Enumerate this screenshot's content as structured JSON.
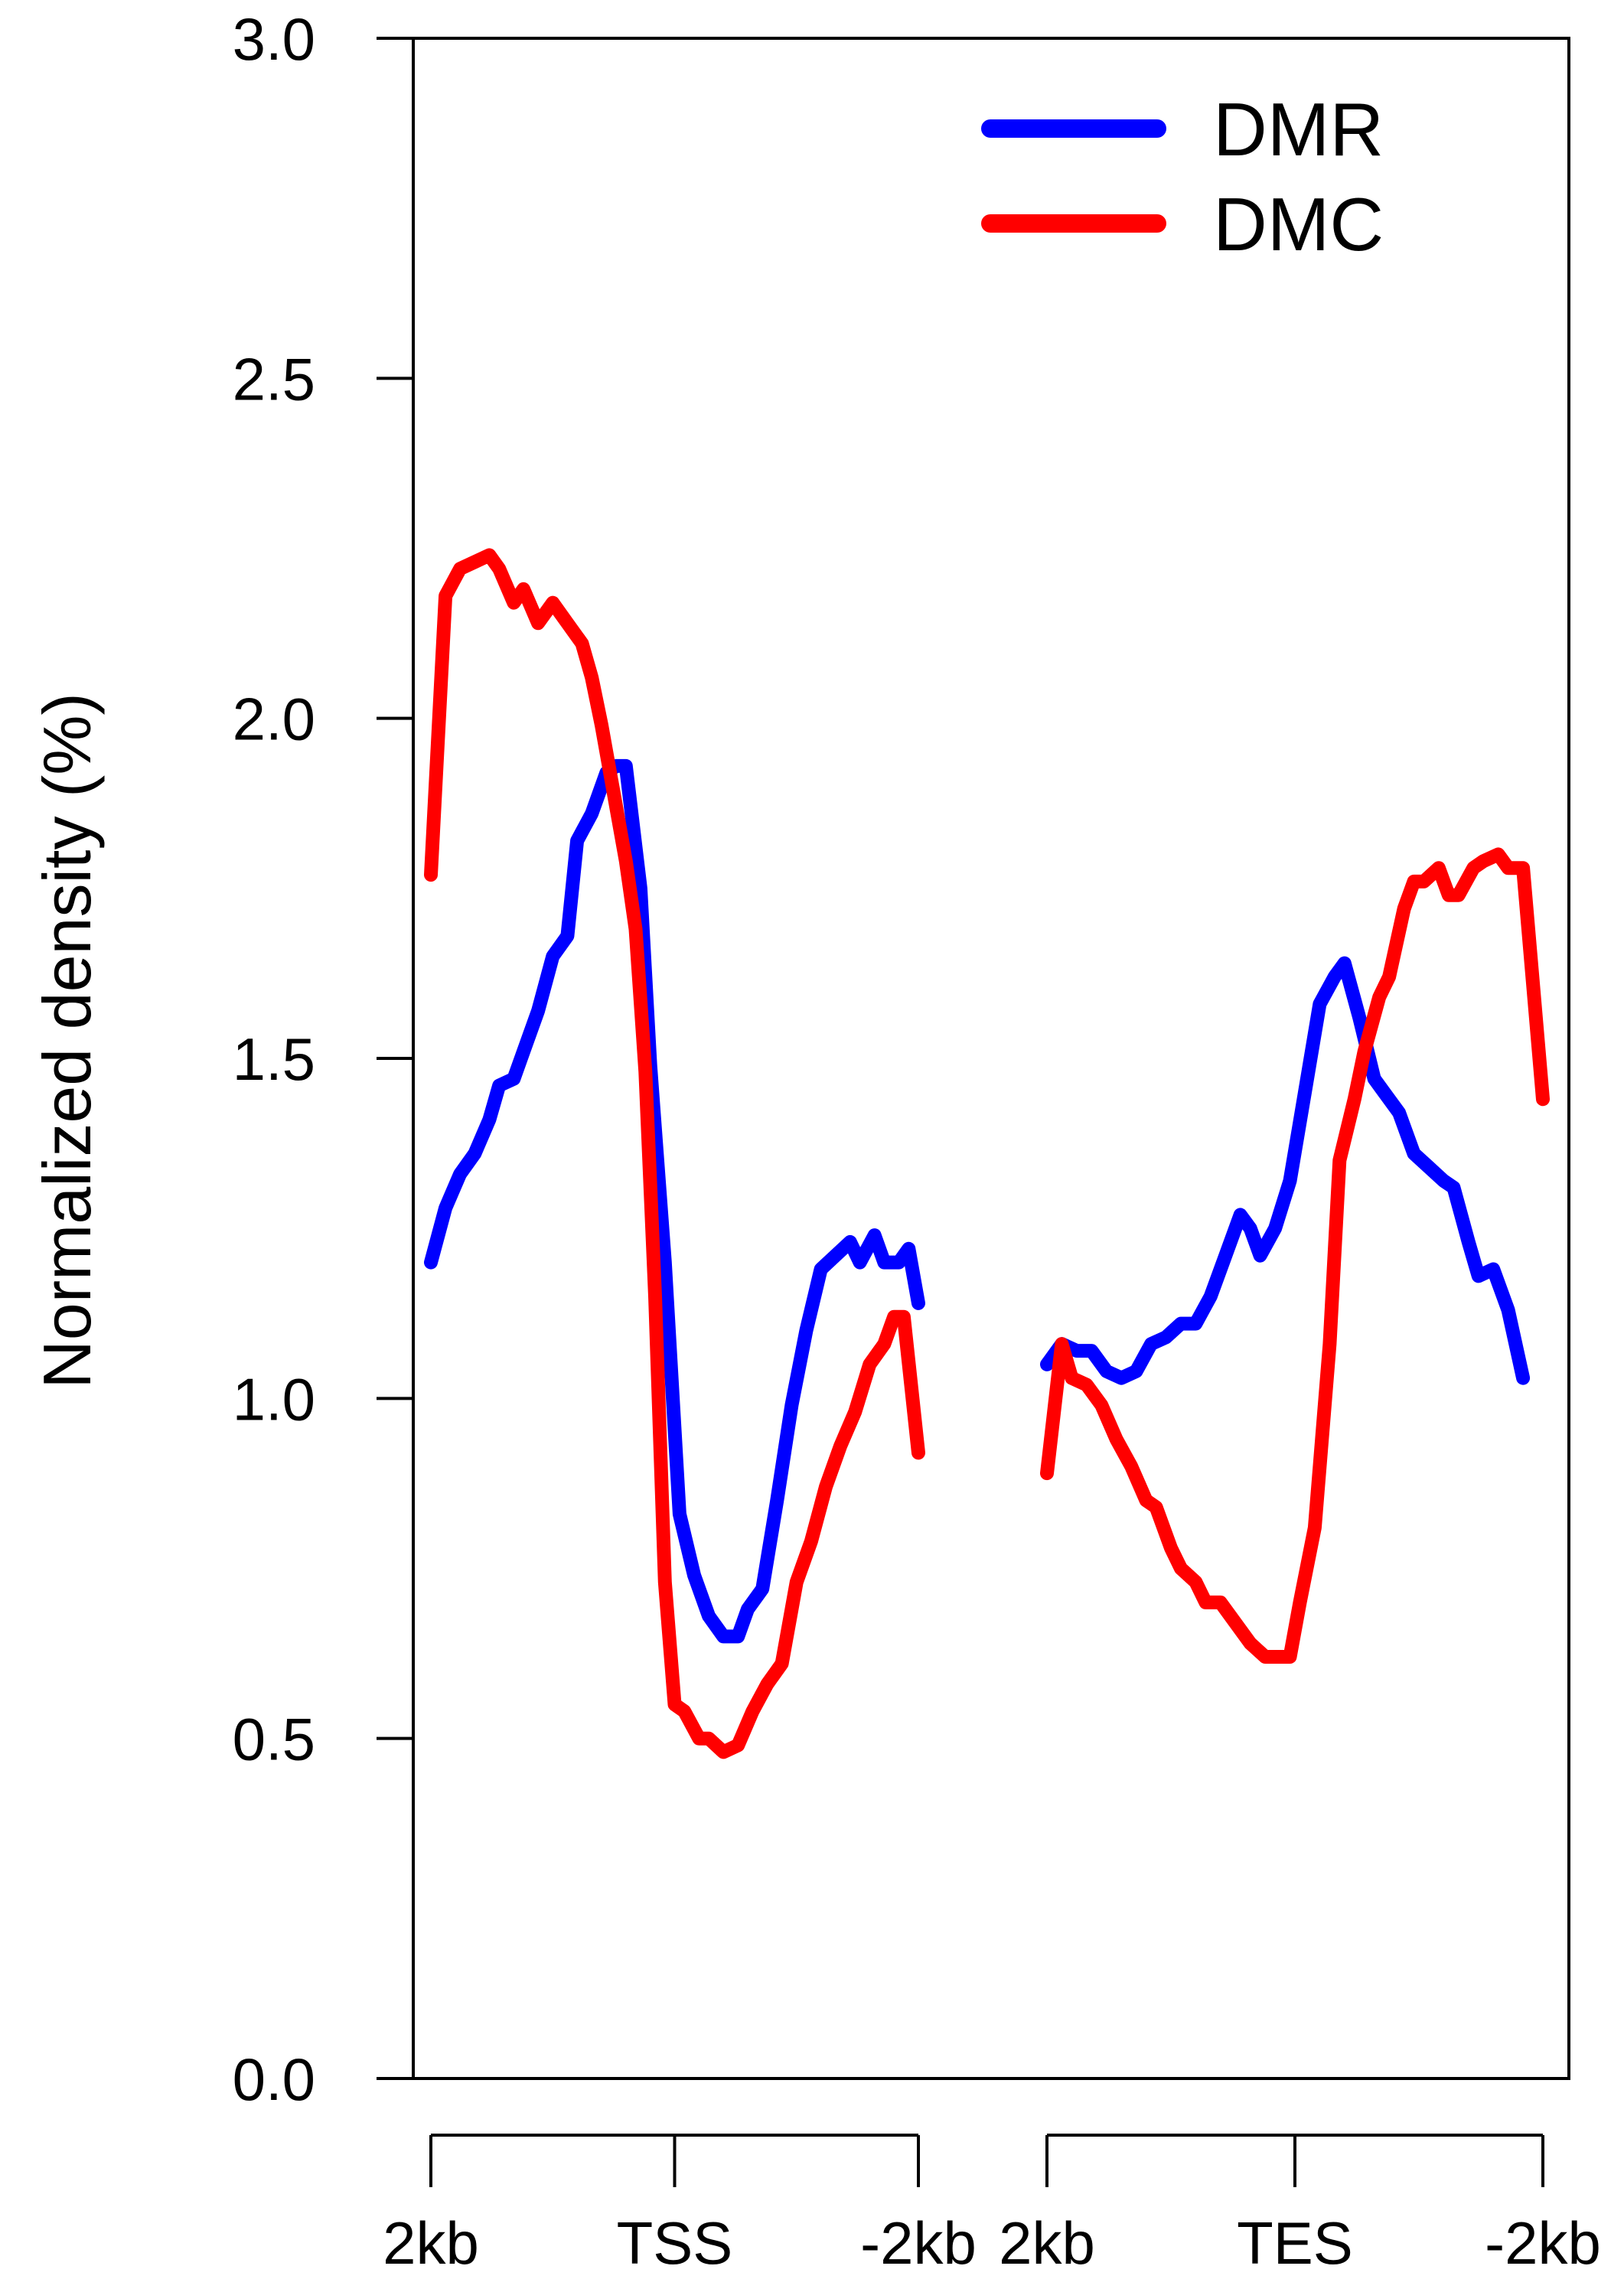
{
  "chart_data": {
    "type": "line",
    "ylabel": "Normalized density (%)",
    "ylim": [
      0,
      3.0
    ],
    "yticks": [
      0.0,
      0.5,
      1.0,
      1.5,
      2.0,
      2.5,
      3.0
    ],
    "ytick_labels": [
      "0.0",
      "0.5",
      "1.0",
      "1.5",
      "2.0",
      "2.5",
      "3.0"
    ],
    "grid": false,
    "legend_position": "top-right",
    "x_segments": [
      {
        "labels": [
          "2kb",
          "TSS",
          "-2kb"
        ]
      },
      {
        "labels": [
          "2kb",
          "TES",
          "-2kb"
        ]
      }
    ],
    "series": [
      {
        "name": "DMR",
        "color": "#0000ff",
        "segments": [
          [
            [
              0.0,
              1.2
            ],
            [
              0.03,
              1.28
            ],
            [
              0.06,
              1.33
            ],
            [
              0.09,
              1.36
            ],
            [
              0.12,
              1.41
            ],
            [
              0.14,
              1.46
            ],
            [
              0.17,
              1.47
            ],
            [
              0.19,
              1.51
            ],
            [
              0.22,
              1.57
            ],
            [
              0.25,
              1.65
            ],
            [
              0.28,
              1.68
            ],
            [
              0.3,
              1.82
            ],
            [
              0.33,
              1.86
            ],
            [
              0.36,
              1.92
            ],
            [
              0.38,
              1.93
            ],
            [
              0.4,
              1.93
            ],
            [
              0.43,
              1.75
            ],
            [
              0.45,
              1.49
            ],
            [
              0.48,
              1.2
            ],
            [
              0.51,
              0.83
            ],
            [
              0.54,
              0.74
            ],
            [
              0.57,
              0.68
            ],
            [
              0.6,
              0.65
            ],
            [
              0.63,
              0.65
            ],
            [
              0.65,
              0.69
            ],
            [
              0.68,
              0.72
            ],
            [
              0.71,
              0.85
            ],
            [
              0.74,
              0.99
            ],
            [
              0.77,
              1.1
            ],
            [
              0.8,
              1.19
            ],
            [
              0.83,
              1.21
            ],
            [
              0.86,
              1.23
            ],
            [
              0.88,
              1.2
            ],
            [
              0.91,
              1.24
            ],
            [
              0.93,
              1.2
            ],
            [
              0.96,
              1.2
            ],
            [
              0.98,
              1.22
            ],
            [
              1.0,
              1.14
            ]
          ],
          [
            [
              0.0,
              1.05
            ],
            [
              0.03,
              1.08
            ],
            [
              0.06,
              1.07
            ],
            [
              0.09,
              1.07
            ],
            [
              0.12,
              1.04
            ],
            [
              0.15,
              1.03
            ],
            [
              0.18,
              1.04
            ],
            [
              0.21,
              1.08
            ],
            [
              0.24,
              1.09
            ],
            [
              0.27,
              1.11
            ],
            [
              0.3,
              1.11
            ],
            [
              0.33,
              1.15
            ],
            [
              0.36,
              1.21
            ],
            [
              0.39,
              1.27
            ],
            [
              0.41,
              1.25
            ],
            [
              0.43,
              1.21
            ],
            [
              0.46,
              1.25
            ],
            [
              0.49,
              1.32
            ],
            [
              0.52,
              1.45
            ],
            [
              0.55,
              1.58
            ],
            [
              0.58,
              1.62
            ],
            [
              0.6,
              1.64
            ],
            [
              0.63,
              1.56
            ],
            [
              0.66,
              1.47
            ],
            [
              0.68,
              1.45
            ],
            [
              0.71,
              1.42
            ],
            [
              0.74,
              1.36
            ],
            [
              0.77,
              1.34
            ],
            [
              0.8,
              1.32
            ],
            [
              0.82,
              1.31
            ],
            [
              0.85,
              1.23
            ],
            [
              0.87,
              1.18
            ],
            [
              0.9,
              1.19
            ],
            [
              0.93,
              1.13
            ],
            [
              0.96,
              1.03
            ]
          ]
        ]
      },
      {
        "name": "DMC",
        "color": "#ff0000",
        "segments": [
          [
            [
              0.0,
              1.77
            ],
            [
              0.03,
              2.18
            ],
            [
              0.06,
              2.22
            ],
            [
              0.09,
              2.23
            ],
            [
              0.12,
              2.24
            ],
            [
              0.14,
              2.22
            ],
            [
              0.17,
              2.17
            ],
            [
              0.19,
              2.19
            ],
            [
              0.22,
              2.14
            ],
            [
              0.25,
              2.17
            ],
            [
              0.28,
              2.14
            ],
            [
              0.31,
              2.11
            ],
            [
              0.33,
              2.06
            ],
            [
              0.35,
              1.99
            ],
            [
              0.37,
              1.91
            ],
            [
              0.4,
              1.79
            ],
            [
              0.42,
              1.69
            ],
            [
              0.44,
              1.48
            ],
            [
              0.46,
              1.15
            ],
            [
              0.48,
              0.73
            ],
            [
              0.5,
              0.55
            ],
            [
              0.52,
              0.54
            ],
            [
              0.55,
              0.5
            ],
            [
              0.57,
              0.5
            ],
            [
              0.6,
              0.48
            ],
            [
              0.63,
              0.49
            ],
            [
              0.66,
              0.54
            ],
            [
              0.69,
              0.58
            ],
            [
              0.72,
              0.61
            ],
            [
              0.75,
              0.73
            ],
            [
              0.78,
              0.79
            ],
            [
              0.81,
              0.87
            ],
            [
              0.84,
              0.93
            ],
            [
              0.87,
              0.98
            ],
            [
              0.9,
              1.05
            ],
            [
              0.93,
              1.08
            ],
            [
              0.95,
              1.12
            ],
            [
              0.97,
              1.12
            ],
            [
              1.0,
              0.92
            ]
          ],
          [
            [
              0.0,
              0.89
            ],
            [
              0.03,
              1.08
            ],
            [
              0.05,
              1.03
            ],
            [
              0.08,
              1.02
            ],
            [
              0.11,
              0.99
            ],
            [
              0.14,
              0.94
            ],
            [
              0.17,
              0.9
            ],
            [
              0.2,
              0.85
            ],
            [
              0.22,
              0.84
            ],
            [
              0.25,
              0.78
            ],
            [
              0.27,
              0.75
            ],
            [
              0.3,
              0.73
            ],
            [
              0.32,
              0.7
            ],
            [
              0.35,
              0.7
            ],
            [
              0.38,
              0.67
            ],
            [
              0.41,
              0.64
            ],
            [
              0.44,
              0.62
            ],
            [
              0.47,
              0.62
            ],
            [
              0.49,
              0.62
            ],
            [
              0.51,
              0.7
            ],
            [
              0.54,
              0.81
            ],
            [
              0.57,
              1.08
            ],
            [
              0.59,
              1.35
            ],
            [
              0.62,
              1.44
            ],
            [
              0.64,
              1.51
            ],
            [
              0.67,
              1.59
            ],
            [
              0.69,
              1.62
            ],
            [
              0.72,
              1.72
            ],
            [
              0.74,
              1.76
            ],
            [
              0.76,
              1.76
            ],
            [
              0.79,
              1.78
            ],
            [
              0.81,
              1.74
            ],
            [
              0.83,
              1.74
            ],
            [
              0.86,
              1.78
            ],
            [
              0.88,
              1.79
            ],
            [
              0.91,
              1.8
            ],
            [
              0.93,
              1.78
            ],
            [
              0.96,
              1.78
            ],
            [
              1.0,
              1.44
            ]
          ]
        ]
      }
    ]
  }
}
